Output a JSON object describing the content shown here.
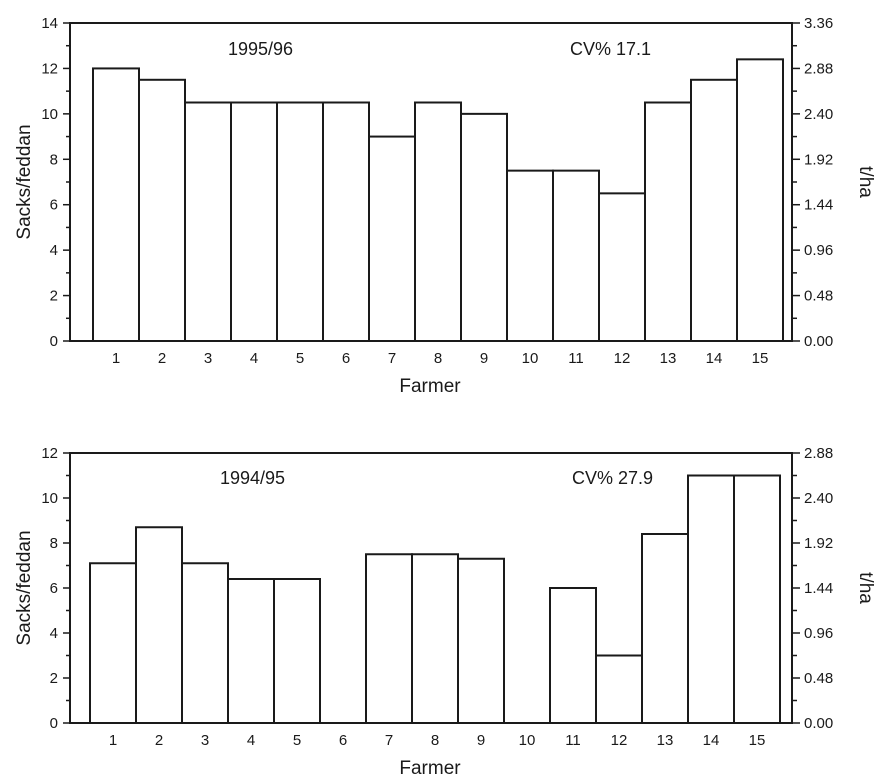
{
  "chart_data": [
    {
      "type": "bar",
      "annotation_left": "1995/96",
      "annotation_right": "CV% 17.1",
      "xlabel": "Farmer",
      "ylabel": "Sacks/feddan",
      "ylabel_right": "t/ha",
      "ylim": [
        0,
        14
      ],
      "yticks": [
        "0",
        "2",
        "4",
        "6",
        "8",
        "10",
        "12",
        "14"
      ],
      "yticks_right": [
        "0.00",
        "0.48",
        "0.96",
        "1.44",
        "1.92",
        "2.40",
        "2.88",
        "3.36"
      ],
      "categories": [
        "1",
        "2",
        "3",
        "4",
        "5",
        "6",
        "7",
        "8",
        "9",
        "10",
        "11",
        "12",
        "13",
        "14",
        "15"
      ],
      "values": [
        12,
        11.5,
        10.5,
        10.5,
        10.5,
        10.5,
        9,
        10.5,
        10,
        7.5,
        7.5,
        6.5,
        10.5,
        11.5,
        12.4
      ]
    },
    {
      "type": "bar",
      "annotation_left": "1994/95",
      "annotation_right": "CV% 27.9",
      "xlabel": "Farmer",
      "ylabel": "Sacks/feddan",
      "ylabel_right": "t/ha",
      "ylim": [
        0,
        12
      ],
      "yticks": [
        "0",
        "2",
        "4",
        "6",
        "8",
        "10",
        "12"
      ],
      "yticks_right": [
        "0.00",
        "0.48",
        "0.96",
        "1.44",
        "1.92",
        "2.40",
        "2.88"
      ],
      "categories": [
        "1",
        "2",
        "3",
        "4",
        "5",
        "6",
        "7",
        "8",
        "9",
        "10",
        "11",
        "12",
        "13",
        "14",
        "15"
      ],
      "values": [
        7.1,
        8.7,
        7.1,
        6.4,
        6.4,
        0,
        7.5,
        7.5,
        7.3,
        0,
        6,
        3,
        8.4,
        11,
        11
      ]
    }
  ]
}
